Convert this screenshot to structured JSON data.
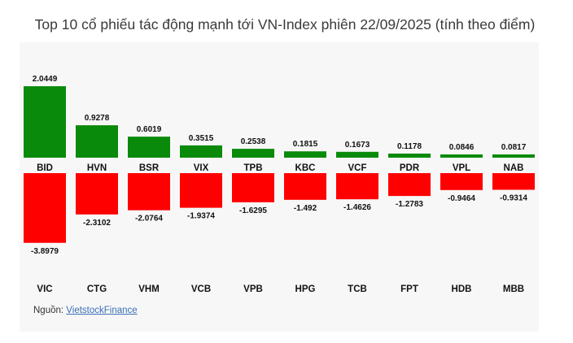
{
  "title": "Top 10 cổ phiếu tác động mạnh tới VN-Index phiên 22/09/2025 (tính theo điểm)",
  "source_label": "Nguồn:",
  "source_link": "VietstockFinance",
  "colors": {
    "positive": "#0a8a0a",
    "negative": "#ff0000",
    "background": "#f7f7f7"
  },
  "chart_data": {
    "type": "bar",
    "title": "Top 10 cổ phiếu tác động mạnh tới VN-Index phiên 22/09/2025 (tính theo điểm)",
    "series": [
      {
        "categories": [
          "BID",
          "HVN",
          "BSR",
          "VIX",
          "TPB",
          "KBC",
          "VCF",
          "PDR",
          "VPL",
          "NAB"
        ],
        "values": [
          2.0449,
          0.9278,
          0.6019,
          0.3515,
          0.2538,
          0.1815,
          0.1673,
          0.1178,
          0.0846,
          0.0817
        ],
        "labels": [
          "2.0449",
          "0.9278",
          "0.6019",
          "0.3515",
          "0.2538",
          "0.1815",
          "0.1673",
          "0.1178",
          "0.0846",
          "0.0817"
        ]
      },
      {
        "categories": [
          "VIC",
          "CTG",
          "VHM",
          "VCB",
          "VPB",
          "HPG",
          "TCB",
          "FPT",
          "HDB",
          "MBB"
        ],
        "values": [
          -3.8979,
          -2.3102,
          -2.0764,
          -1.9374,
          -1.6295,
          -1.492,
          -1.4626,
          -1.2783,
          -0.9464,
          -0.9314
        ],
        "labels": [
          "-3.8979",
          "-2.3102",
          "-2.0764",
          "-1.9374",
          "-1.6295",
          "-1.492",
          "-1.4626",
          "-1.2783",
          "-0.9464",
          "-0.9314"
        ]
      }
    ]
  }
}
